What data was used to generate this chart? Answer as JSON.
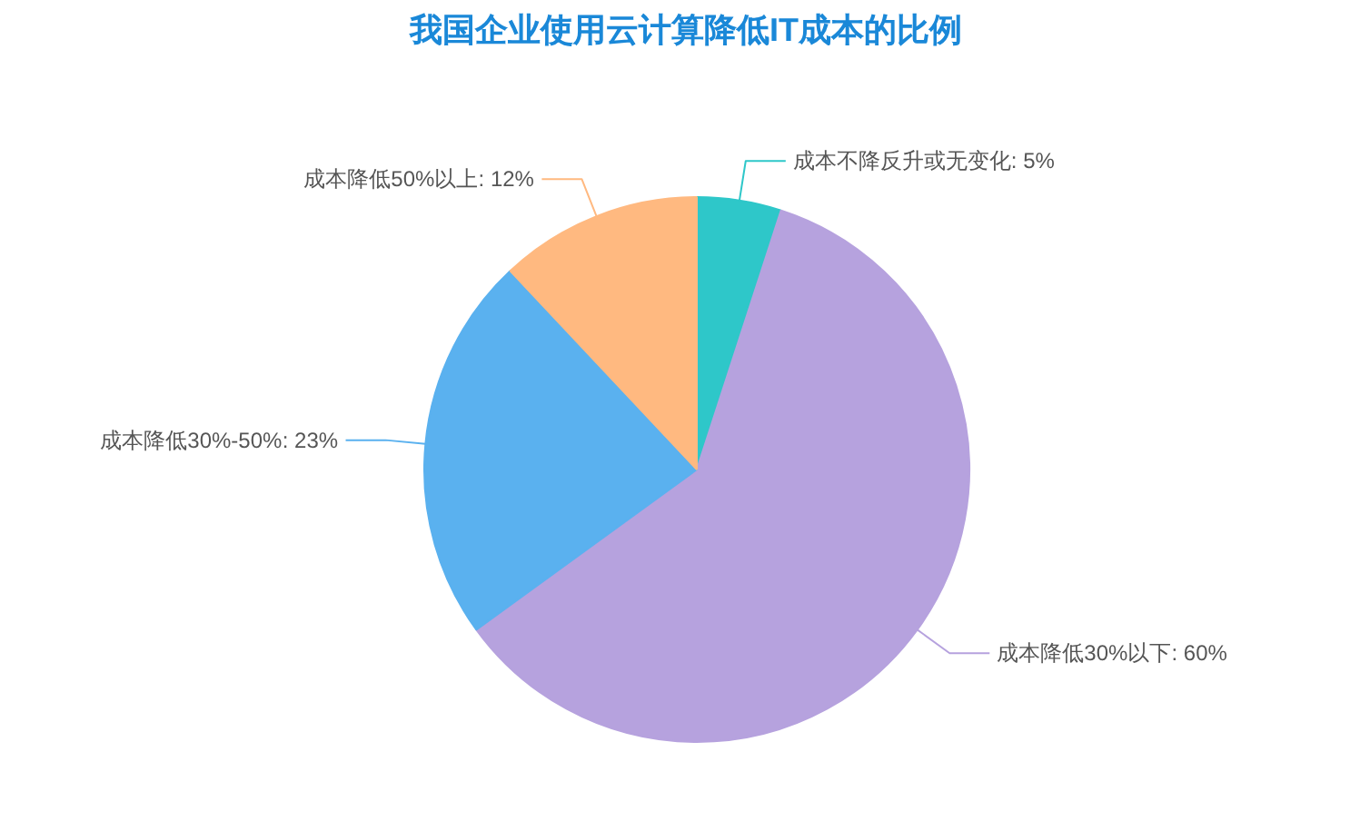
{
  "chart_data": {
    "type": "pie",
    "title": "我国企业使用云计算降低IT成本的比例",
    "categories": [
      "成本不降反升或无变化",
      "成本降低30%以下",
      "成本降低30%-50%",
      "成本降低50%以上"
    ],
    "values": [
      5,
      60,
      23,
      12
    ],
    "colors": [
      "#2ec7c9",
      "#b6a2de",
      "#5ab1ef",
      "#ffb980"
    ],
    "value_labels": [
      ": 5%",
      ": 60%",
      ": 23%",
      ": 12%"
    ]
  }
}
